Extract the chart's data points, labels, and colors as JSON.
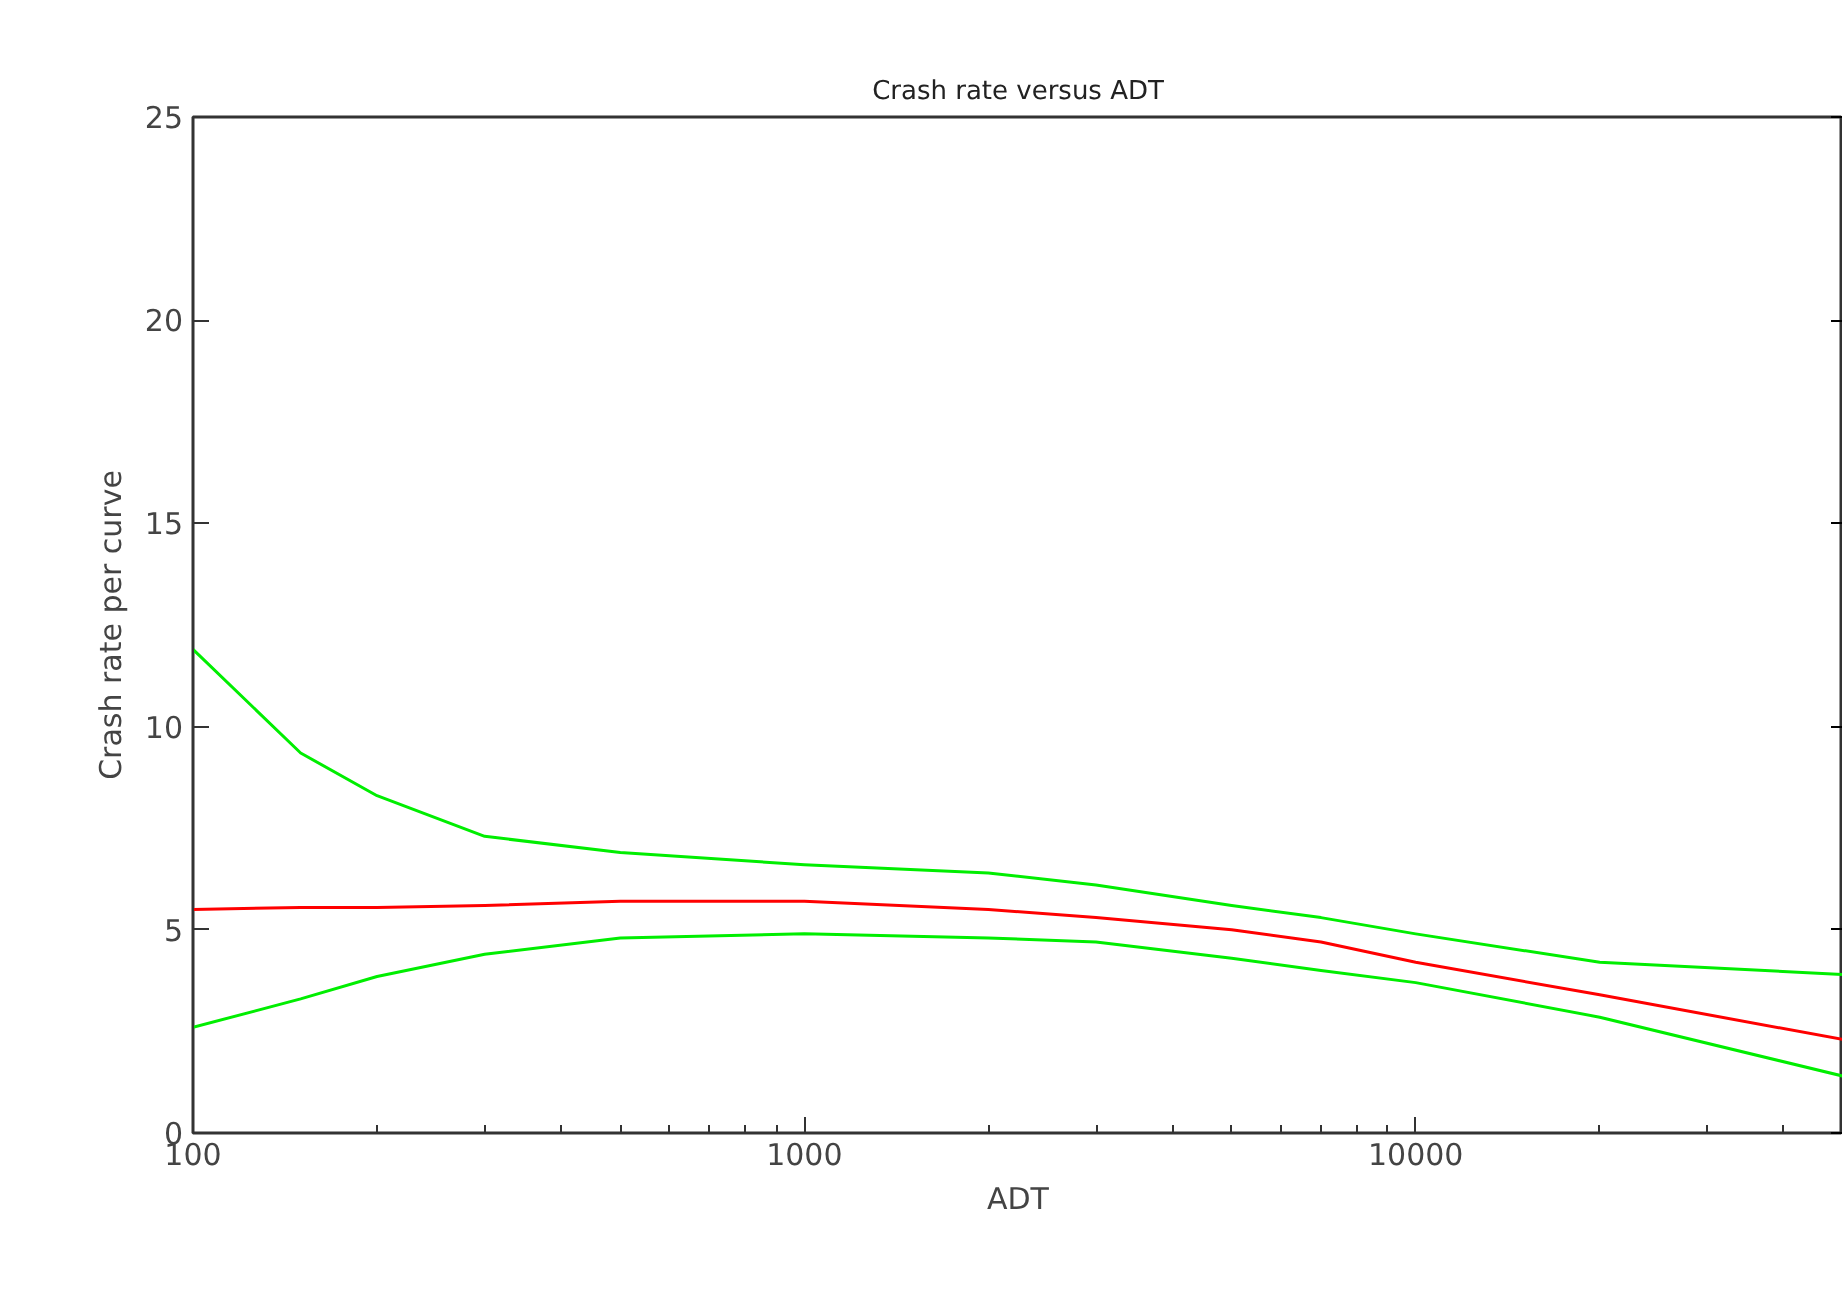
{
  "chart_data": {
    "type": "line",
    "title": "Crash rate versus ADT",
    "xlabel": "ADT",
    "ylabel": "Crash rate per curve",
    "log": "x",
    "grid": false,
    "marker": "none",
    "line_style": "solid",
    "xlim": [
      100,
      50000
    ],
    "ylim": [
      0,
      25
    ],
    "xticks": [
      100,
      {
        "value": 200,
        "label": null
      },
      {
        "value": 300,
        "label": null
      },
      {
        "value": 400,
        "label": null
      },
      {
        "value": 500,
        "label": null
      },
      {
        "value": 600,
        "label": null
      },
      {
        "value": 700,
        "label": null
      },
      {
        "value": 800,
        "label": null
      },
      {
        "value": 900,
        "label": null
      },
      1000,
      {
        "value": 2000,
        "label": null
      },
      {
        "value": 3000,
        "label": null
      },
      {
        "value": 4000,
        "label": null
      },
      {
        "value": 5000,
        "label": null
      },
      {
        "value": 6000,
        "label": null
      },
      {
        "value": 7000,
        "label": null
      },
      {
        "value": 8000,
        "label": null
      },
      {
        "value": 9000,
        "label": null
      },
      10000,
      {
        "value": 20000,
        "label": null
      },
      {
        "value": 30000,
        "label": null
      },
      {
        "value": 40000,
        "label": null
      }
    ],
    "yticks": [
      0,
      5,
      10,
      15,
      20,
      25
    ],
    "x": [
      100,
      150,
      200,
      300,
      500,
      1000,
      2000,
      3000,
      5000,
      7000,
      10000,
      20000,
      50000
    ],
    "series": [
      {
        "color": "#00ee00",
        "values": [
          11.9,
          9.35,
          8.3,
          7.3,
          6.9,
          6.6,
          6.4,
          6.1,
          5.6,
          5.3,
          4.9,
          4.2,
          3.9
        ]
      },
      {
        "color": "#ff0000",
        "values": [
          5.5,
          5.55,
          5.55,
          5.6,
          5.7,
          5.7,
          5.5,
          5.3,
          5.0,
          4.7,
          4.2,
          3.4,
          2.3
        ]
      },
      {
        "color": "#00ee00",
        "values": [
          2.6,
          3.3,
          3.85,
          4.4,
          4.8,
          4.9,
          4.8,
          4.7,
          4.3,
          4.0,
          3.7,
          2.85,
          1.4
        ]
      }
    ]
  }
}
